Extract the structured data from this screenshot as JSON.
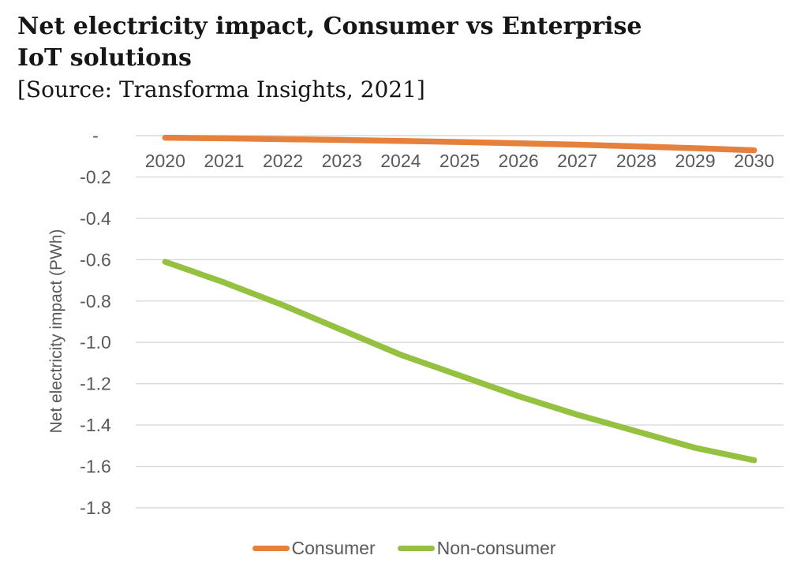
{
  "page": {
    "title_lines": [
      "Net electricity impact, Consumer vs Enterprise",
      "IoT solutions"
    ],
    "source": "[Source: Transforma Insights, 2021]"
  },
  "chart_data": {
    "type": "line",
    "title": "Net electricity impact, Consumer vs Enterprise IoT solutions",
    "source_text": "[Source: Transforma Insights, 2021]",
    "ylabel": "Net electricity impact (PWh)",
    "xlabel": "",
    "categories": [
      "2020",
      "2021",
      "2022",
      "2023",
      "2024",
      "2025",
      "2026",
      "2027",
      "2028",
      "2029",
      "2030"
    ],
    "series": [
      {
        "name": "Consumer",
        "color": "#e5813c",
        "values": [
          -0.01,
          -0.013,
          -0.017,
          -0.021,
          -0.026,
          -0.031,
          -0.037,
          -0.044,
          -0.052,
          -0.061,
          -0.071
        ]
      },
      {
        "name": "Non-consumer",
        "color": "#94c13f",
        "values": [
          -0.61,
          -0.71,
          -0.82,
          -0.94,
          -1.06,
          -1.16,
          -1.26,
          -1.35,
          -1.43,
          -1.51,
          -1.57
        ]
      }
    ],
    "ylim": [
      -1.8,
      0
    ],
    "ytick_values": [
      0,
      -0.2,
      -0.4,
      -0.6,
      -0.8,
      -1.0,
      -1.2,
      -1.4,
      -1.6,
      -1.8
    ],
    "ytick_labels": [
      "-",
      "-0.2",
      "-0.4",
      "-0.6",
      "-0.8",
      "-1.0",
      "-1.2",
      "-1.4",
      "-1.6",
      "-1.8"
    ],
    "grid": "horizontal",
    "legend_position": "bottom",
    "x_labels_position": "above-plot-below-zero-line"
  },
  "style": {
    "axis_text_color": "#595959",
    "gridline_color": "#d9d9d9",
    "title_color": "#161616"
  }
}
